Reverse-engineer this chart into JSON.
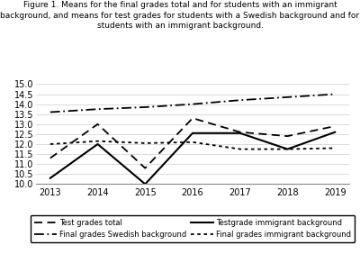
{
  "years": [
    2013,
    2014,
    2015,
    2016,
    2017,
    2018,
    2019
  ],
  "test_grades_total": [
    11.3,
    13.0,
    10.8,
    13.3,
    12.6,
    12.4,
    12.9
  ],
  "final_grades_swedish": [
    13.6,
    13.75,
    13.85,
    14.0,
    14.2,
    14.35,
    14.5
  ],
  "testgrade_immigrant": [
    10.3,
    12.0,
    10.0,
    12.55,
    12.55,
    11.75,
    12.6
  ],
  "final_grades_immigrant": [
    12.0,
    12.15,
    12.05,
    12.1,
    11.75,
    11.75,
    11.8
  ],
  "title_bold": "Figure 1.",
  "title_rest": " Means for the final grades total and for students with an immigrant\nbackground, and means for test grades for students with a Swedish background and for\nstudents with an immigrant background.",
  "ylim": [
    10,
    15
  ],
  "yticks": [
    10,
    10.5,
    11,
    11.5,
    12,
    12.5,
    13,
    13.5,
    14,
    14.5,
    15
  ],
  "legend": [
    "Test grades total",
    "Final grades Swedish background",
    "Testgrade immigrant background",
    "Final grades immigrant background"
  ],
  "bg_color": "#ffffff",
  "grid_color": "#cccccc"
}
